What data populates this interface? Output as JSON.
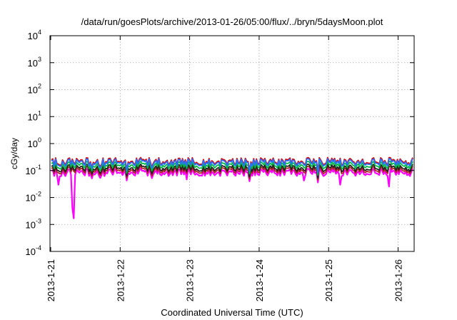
{
  "chart_data": {
    "type": "line",
    "title": "/data/run/goesPlots/archive/2013-01-26/05:00/flux/../bryn/5daysMoon.plot",
    "xlabel": "Coordinated Universal Time (UTC)",
    "ylabel": "cGy/day",
    "x_ticks": [
      "2013-1-21",
      "2013-1-22",
      "2013-1-23",
      "2013-1-24",
      "2013-1-25",
      "2013-1-26"
    ],
    "y_scale": "log",
    "ylim": [
      0.0001,
      10000
    ],
    "y_ticks": [
      {
        "base": "10",
        "exp": "-4"
      },
      {
        "base": "10",
        "exp": "-3"
      },
      {
        "base": "10",
        "exp": "-2"
      },
      {
        "base": "10",
        "exp": "-1"
      },
      {
        "base": "10",
        "exp": "0"
      },
      {
        "base": "10",
        "exp": "1"
      },
      {
        "base": "10",
        "exp": "2"
      },
      {
        "base": "10",
        "exp": "3"
      },
      {
        "base": "10",
        "exp": "4"
      }
    ],
    "grid": true,
    "series": [
      {
        "color": "#ff00ff",
        "baseline": 0.085,
        "min": 0.0017
      },
      {
        "color": "#b02020",
        "baseline": 0.105
      },
      {
        "color": "#222222",
        "baseline": 0.125
      },
      {
        "color": "#00bb44",
        "baseline": 0.16
      },
      {
        "color": "#e00000",
        "baseline": 0.22
      },
      {
        "color": "#2a6fff",
        "baseline": 0.2
      }
    ]
  }
}
